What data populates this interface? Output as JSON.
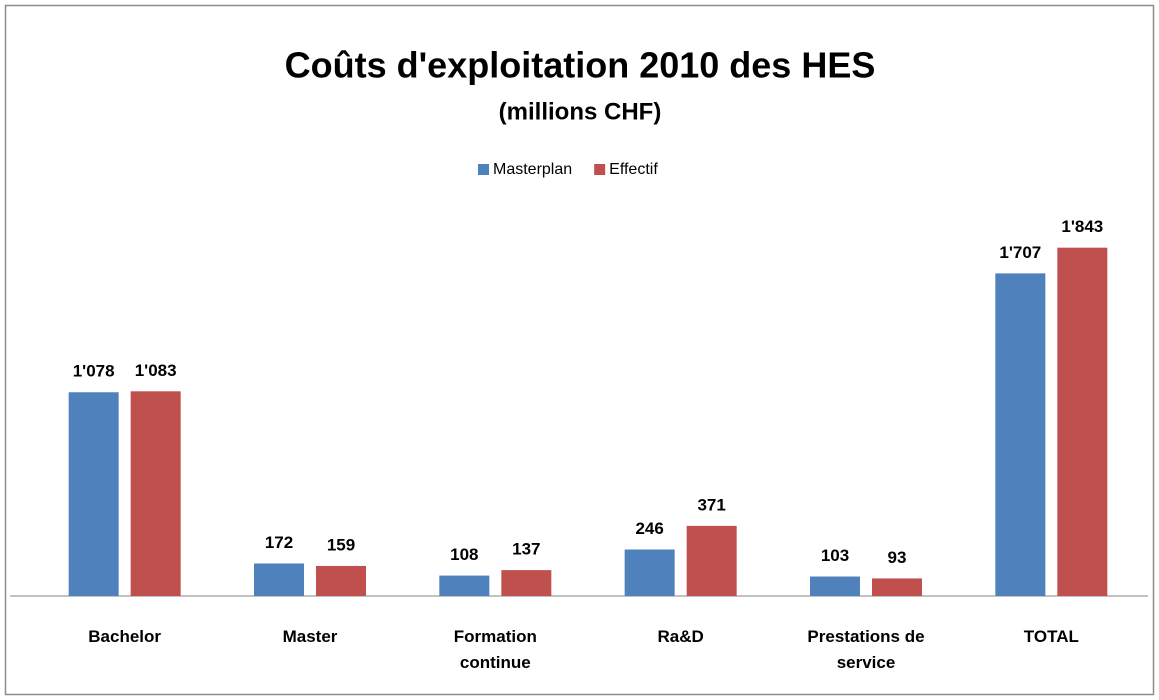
{
  "chart_data": {
    "type": "bar",
    "title": "Coûts d'exploitation 2010 des HES",
    "subtitle": "(millions CHF)",
    "categories": [
      "Bachelor",
      "Master",
      "Formation continue",
      "Ra&D",
      "Prestations de service",
      "TOTAL"
    ],
    "series": [
      {
        "name": "Masterplan",
        "color": "#4f81bd",
        "values": [
          1078,
          172,
          108,
          246,
          103,
          1707
        ],
        "value_labels": [
          "1'078",
          "172",
          "108",
          "246",
          "103",
          "1'707"
        ]
      },
      {
        "name": "Effectif",
        "color": "#c0504d",
        "values": [
          1083,
          159,
          137,
          371,
          93,
          1843
        ],
        "value_labels": [
          "1'083",
          "159",
          "137",
          "371",
          "93",
          "1'843"
        ]
      }
    ],
    "ylim": [
      0,
      2000
    ],
    "legend": "top"
  }
}
